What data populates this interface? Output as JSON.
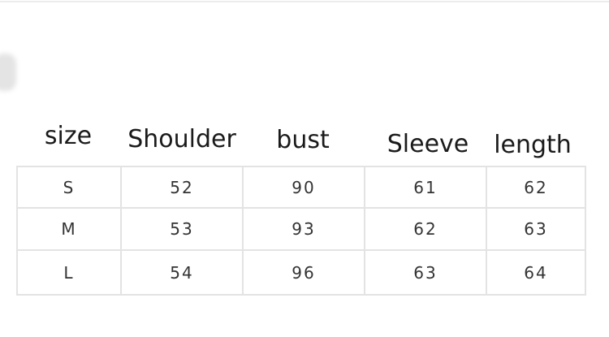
{
  "headers": [
    "size",
    "Shoulder",
    "bust",
    "Sleeve",
    "length"
  ],
  "rows": [
    [
      "S",
      "52",
      "90",
      "61",
      "62"
    ],
    [
      "M",
      "53",
      "93",
      "62",
      "63"
    ],
    [
      "L",
      "54",
      "96",
      "63",
      "64"
    ]
  ]
}
